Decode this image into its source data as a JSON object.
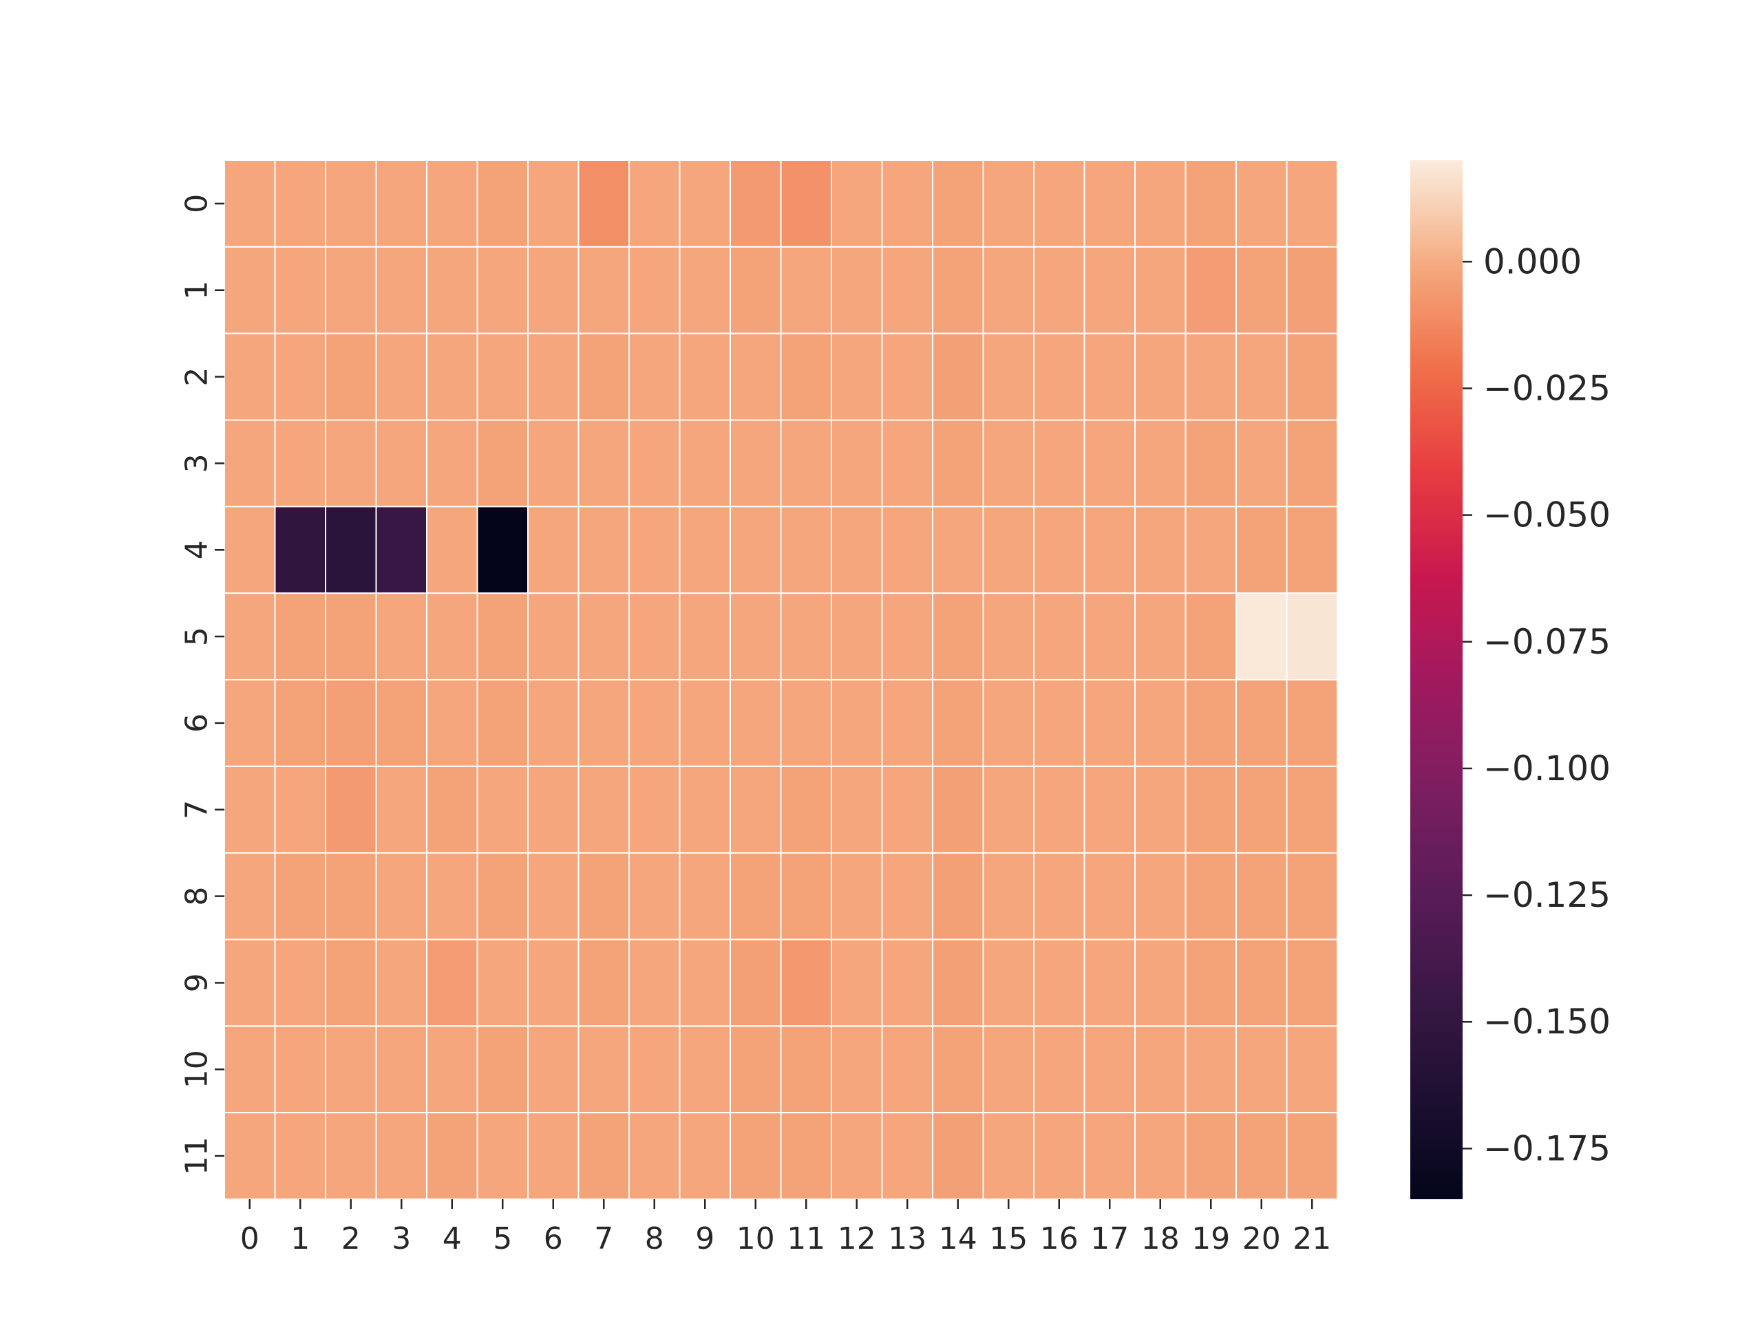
{
  "chart_data": {
    "type": "heatmap",
    "title": "",
    "xlabel": "",
    "ylabel": "",
    "x_tick_labels": [
      "0",
      "1",
      "2",
      "3",
      "4",
      "5",
      "6",
      "7",
      "8",
      "9",
      "10",
      "11",
      "12",
      "13",
      "14",
      "15",
      "16",
      "17",
      "18",
      "19",
      "20",
      "21"
    ],
    "y_tick_labels": [
      "0",
      "1",
      "2",
      "3",
      "4",
      "5",
      "6",
      "7",
      "8",
      "9",
      "10",
      "11"
    ],
    "colormap": "rocket",
    "vmin": -0.185,
    "vmax": 0.02,
    "colorbar_ticks": [
      0.0,
      -0.025,
      -0.05,
      -0.075,
      -0.1,
      -0.125,
      -0.15,
      -0.175
    ],
    "colorbar_tick_labels": [
      "0.000",
      "−0.025",
      "−0.050",
      "−0.075",
      "−0.100",
      "−0.125",
      "−0.150",
      "−0.175"
    ],
    "grid_line_color": "#ffffff",
    "values": [
      [
        -0.002,
        -0.002,
        -0.002,
        -0.002,
        -0.002,
        -0.003,
        -0.002,
        -0.01,
        -0.002,
        -0.002,
        -0.006,
        -0.009,
        -0.002,
        -0.002,
        -0.003,
        -0.002,
        -0.002,
        -0.002,
        -0.002,
        -0.003,
        -0.002,
        -0.002
      ],
      [
        -0.002,
        -0.002,
        -0.002,
        -0.002,
        -0.002,
        -0.002,
        -0.002,
        -0.002,
        -0.002,
        -0.002,
        -0.003,
        -0.002,
        -0.002,
        -0.002,
        -0.003,
        -0.002,
        -0.002,
        -0.002,
        -0.002,
        -0.005,
        -0.003,
        -0.004
      ],
      [
        -0.002,
        -0.002,
        -0.003,
        -0.002,
        -0.002,
        -0.002,
        -0.002,
        -0.003,
        -0.002,
        -0.002,
        -0.002,
        -0.003,
        -0.002,
        -0.002,
        -0.004,
        -0.002,
        -0.002,
        -0.002,
        -0.002,
        -0.002,
        -0.002,
        -0.003
      ],
      [
        -0.002,
        -0.002,
        -0.002,
        -0.002,
        -0.002,
        -0.003,
        -0.002,
        -0.002,
        -0.002,
        -0.002,
        -0.002,
        -0.002,
        -0.002,
        -0.002,
        -0.003,
        -0.002,
        -0.002,
        -0.002,
        -0.002,
        -0.003,
        -0.002,
        -0.003
      ],
      [
        -0.002,
        -0.152,
        -0.155,
        -0.147,
        -0.002,
        -0.185,
        -0.002,
        -0.002,
        -0.002,
        -0.002,
        -0.002,
        -0.002,
        -0.002,
        -0.002,
        -0.002,
        -0.002,
        -0.002,
        -0.002,
        -0.002,
        -0.002,
        -0.003,
        -0.003
      ],
      [
        -0.002,
        -0.003,
        -0.003,
        -0.002,
        -0.002,
        -0.003,
        -0.002,
        -0.002,
        -0.002,
        -0.002,
        -0.002,
        -0.002,
        -0.002,
        -0.002,
        -0.003,
        -0.002,
        -0.002,
        -0.002,
        -0.002,
        -0.003,
        0.019,
        0.018
      ],
      [
        -0.002,
        -0.003,
        -0.004,
        -0.003,
        -0.002,
        -0.003,
        -0.002,
        -0.002,
        -0.002,
        -0.002,
        -0.002,
        -0.002,
        -0.002,
        -0.002,
        -0.003,
        -0.002,
        -0.002,
        -0.002,
        -0.002,
        -0.003,
        -0.003,
        -0.003
      ],
      [
        -0.002,
        -0.002,
        -0.006,
        -0.002,
        -0.003,
        -0.002,
        -0.002,
        -0.002,
        -0.002,
        -0.002,
        -0.002,
        -0.003,
        -0.002,
        -0.002,
        -0.004,
        -0.002,
        -0.002,
        -0.002,
        -0.002,
        -0.003,
        -0.003,
        -0.003
      ],
      [
        -0.002,
        -0.003,
        -0.003,
        -0.002,
        -0.002,
        -0.003,
        -0.002,
        -0.003,
        -0.002,
        -0.002,
        -0.003,
        -0.003,
        -0.002,
        -0.002,
        -0.004,
        -0.002,
        -0.002,
        -0.002,
        -0.002,
        -0.003,
        -0.003,
        -0.003
      ],
      [
        -0.002,
        -0.002,
        -0.003,
        -0.002,
        -0.005,
        -0.002,
        -0.002,
        -0.003,
        -0.002,
        -0.002,
        -0.004,
        -0.007,
        -0.002,
        -0.002,
        -0.004,
        -0.002,
        -0.002,
        -0.002,
        -0.002,
        -0.003,
        -0.003,
        -0.003
      ],
      [
        -0.002,
        -0.002,
        -0.002,
        -0.002,
        -0.002,
        -0.003,
        -0.002,
        -0.002,
        -0.002,
        -0.002,
        -0.003,
        -0.003,
        -0.002,
        -0.002,
        -0.003,
        -0.002,
        -0.002,
        -0.002,
        -0.002,
        -0.002,
        -0.002,
        -0.002
      ],
      [
        -0.002,
        -0.002,
        -0.002,
        -0.002,
        -0.003,
        -0.002,
        -0.002,
        -0.003,
        -0.002,
        -0.002,
        -0.003,
        -0.003,
        -0.002,
        -0.002,
        -0.004,
        -0.002,
        -0.002,
        -0.002,
        -0.002,
        -0.003,
        -0.003,
        -0.003
      ]
    ]
  }
}
